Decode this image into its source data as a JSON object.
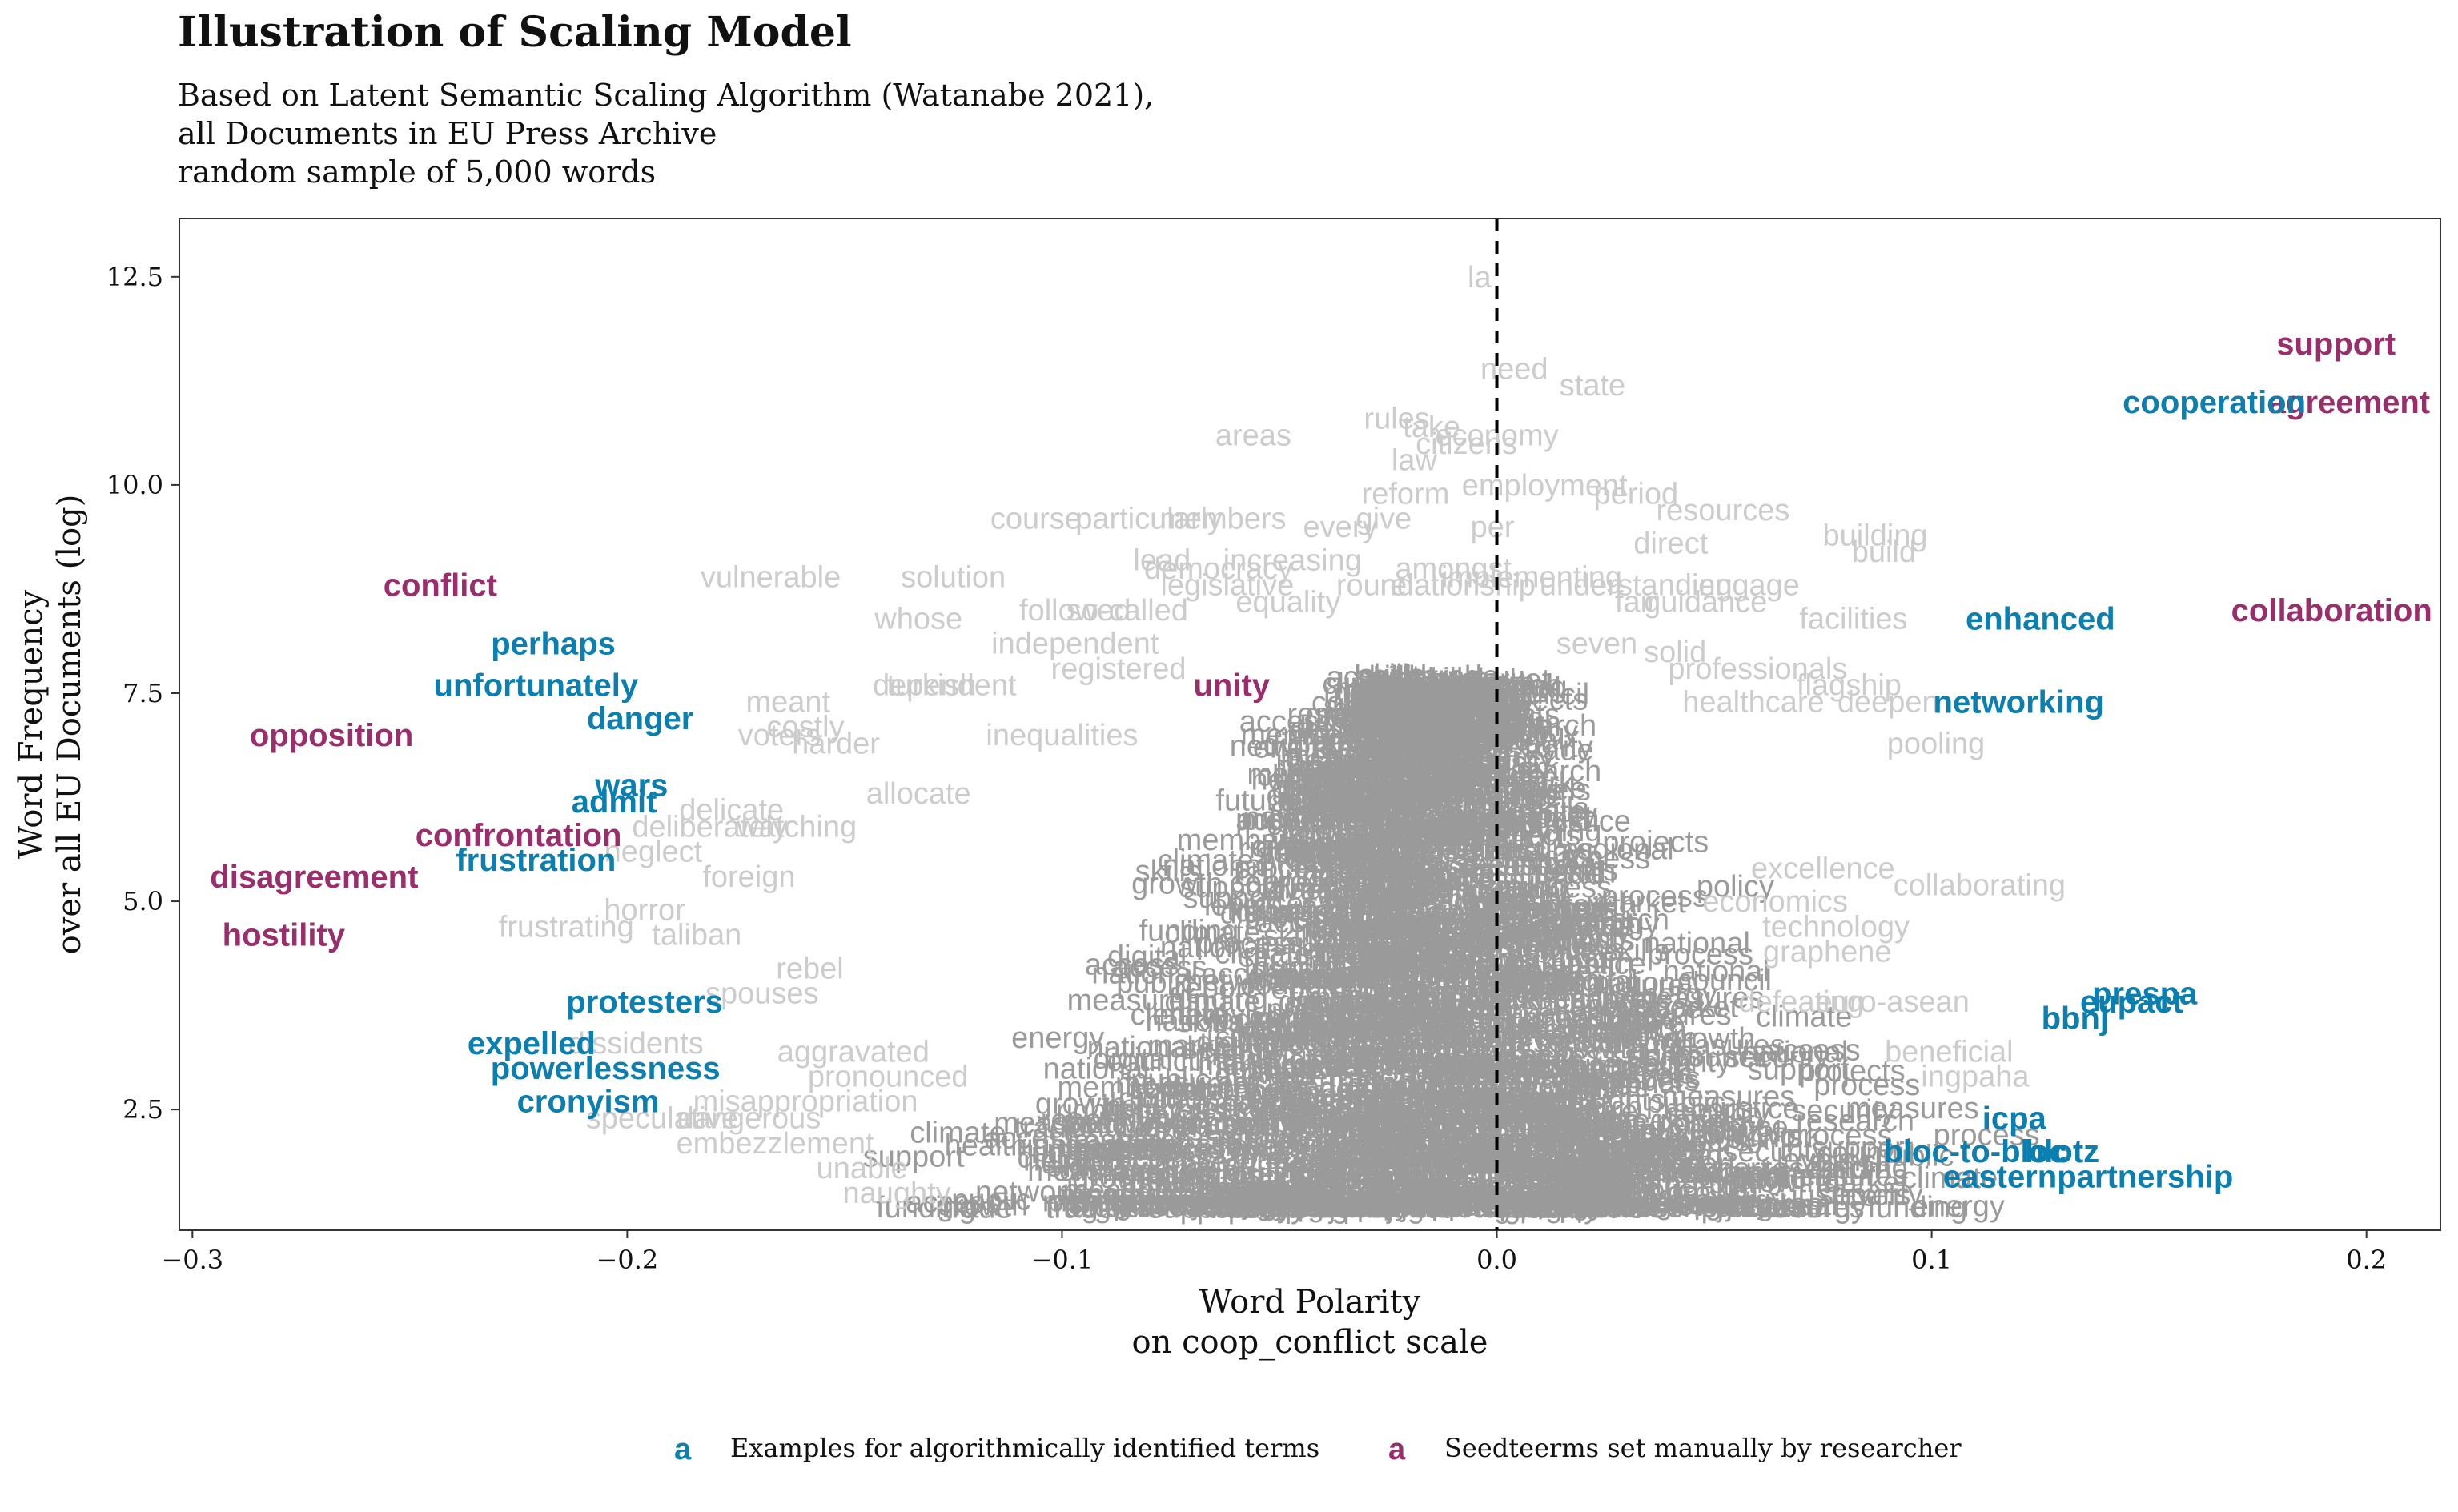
{
  "chart_data": {
    "type": "scatter",
    "title": "Illustration of Scaling Model",
    "subtitle_lines": [
      "Based on Latent Semantic Scaling Algorithm (Watanabe 2021),",
      "all Documents in EU Press Archive",
      "random sample of 5,000 words"
    ],
    "xlabel_lines": [
      "Word Polarity",
      "on coop_conflict scale"
    ],
    "ylabel_lines": [
      "Word Frequency",
      "over all EU Documents (log)"
    ],
    "xlim": [
      -0.303,
      0.217
    ],
    "ylim": [
      1.05,
      13.2
    ],
    "x_ticks": [
      -0.3,
      -0.2,
      -0.1,
      0.0,
      0.1,
      0.2
    ],
    "x_tick_labels": [
      "−0.3",
      "−0.2",
      "−0.1",
      "0.0",
      "0.1",
      "0.2"
    ],
    "y_ticks": [
      2.5,
      5.0,
      7.5,
      10.0,
      12.5
    ],
    "y_tick_labels": [
      "2.5",
      "5.0",
      "7.5",
      "10.0",
      "12.5"
    ],
    "reference_line_x": 0.0,
    "grid": false,
    "colors": {
      "algorithmic": "#0b7fb0",
      "seed": "#9a2d6b",
      "background_words": "#cccccc",
      "dense_words": "#9a9a9a",
      "reference_line": "#000000"
    },
    "legend": {
      "position": "bottom",
      "key_glyph": "a",
      "entries": [
        {
          "label": "Examples for algorithmically identified terms",
          "group": "algorithmic"
        },
        {
          "label": "Seedteerms set manually by researcher",
          "group": "seed"
        }
      ]
    },
    "series": [
      {
        "name": "Seedteerms set manually by researcher",
        "group": "seed",
        "points": [
          {
            "label": "support",
            "x": 0.193,
            "y": 11.7
          },
          {
            "label": "agreement",
            "x": 0.196,
            "y": 11.0
          },
          {
            "label": "collaboration",
            "x": 0.192,
            "y": 8.5
          },
          {
            "label": "conflict",
            "x": -0.243,
            "y": 8.8
          },
          {
            "label": "opposition",
            "x": -0.268,
            "y": 7.0
          },
          {
            "label": "confrontation",
            "x": -0.225,
            "y": 5.8
          },
          {
            "label": "disagreement",
            "x": -0.272,
            "y": 5.3
          },
          {
            "label": "hostility",
            "x": -0.279,
            "y": 4.6
          },
          {
            "label": "unity",
            "x": -0.061,
            "y": 7.6
          }
        ]
      },
      {
        "name": "Examples for algorithmically identified terms",
        "group": "algorithmic",
        "points": [
          {
            "label": "cooperation",
            "x": 0.165,
            "y": 11.0
          },
          {
            "label": "enhanced",
            "x": 0.125,
            "y": 8.4
          },
          {
            "label": "networking",
            "x": 0.12,
            "y": 7.4
          },
          {
            "label": "perhaps",
            "x": -0.217,
            "y": 8.1
          },
          {
            "label": "unfortunately",
            "x": -0.221,
            "y": 7.6
          },
          {
            "label": "danger",
            "x": -0.197,
            "y": 7.2
          },
          {
            "label": "wars",
            "x": -0.199,
            "y": 6.4
          },
          {
            "label": "admit",
            "x": -0.203,
            "y": 6.2
          },
          {
            "label": "frustration",
            "x": -0.221,
            "y": 5.5
          },
          {
            "label": "protesters",
            "x": -0.196,
            "y": 3.8
          },
          {
            "label": "expelled",
            "x": -0.222,
            "y": 3.3
          },
          {
            "label": "powerlessness",
            "x": -0.205,
            "y": 3.0
          },
          {
            "label": "cronyism",
            "x": -0.209,
            "y": 2.6
          },
          {
            "label": "prespa",
            "x": 0.149,
            "y": 3.9
          },
          {
            "label": "eupact",
            "x": 0.146,
            "y": 3.8
          },
          {
            "label": "bbnj",
            "x": 0.133,
            "y": 3.6
          },
          {
            "label": "icpa",
            "x": 0.119,
            "y": 2.4
          },
          {
            "label": "bloc-to-bloc",
            "x": 0.11,
            "y": 2.0
          },
          {
            "label": "blotz",
            "x": 0.13,
            "y": 2.0
          },
          {
            "label": "easternpartnership",
            "x": 0.136,
            "y": 1.7
          }
        ]
      },
      {
        "name": "",
        "group": "background",
        "points": [
          {
            "label": "la",
            "x": -0.004,
            "y": 12.5
          },
          {
            "label": "need",
            "x": 0.004,
            "y": 11.4
          },
          {
            "label": "state",
            "x": 0.022,
            "y": 11.2
          },
          {
            "label": "rules",
            "x": -0.023,
            "y": 10.8
          },
          {
            "label": "areas",
            "x": -0.056,
            "y": 10.6
          },
          {
            "label": "take",
            "x": -0.015,
            "y": 10.7
          },
          {
            "label": "economy",
            "x": 0.0,
            "y": 10.6
          },
          {
            "label": "citizens",
            "x": -0.007,
            "y": 10.5
          },
          {
            "label": "law",
            "x": -0.019,
            "y": 10.3
          },
          {
            "label": "employment",
            "x": 0.011,
            "y": 10.0
          },
          {
            "label": "period",
            "x": 0.032,
            "y": 9.9
          },
          {
            "label": "reform",
            "x": -0.021,
            "y": 9.9
          },
          {
            "label": "resources",
            "x": 0.052,
            "y": 9.7
          },
          {
            "label": "course",
            "x": -0.106,
            "y": 9.6
          },
          {
            "label": "particularly",
            "x": -0.08,
            "y": 9.6
          },
          {
            "label": "members",
            "x": -0.063,
            "y": 9.6
          },
          {
            "label": "every",
            "x": -0.036,
            "y": 9.5
          },
          {
            "label": "give",
            "x": -0.026,
            "y": 9.6
          },
          {
            "label": "per",
            "x": -0.001,
            "y": 9.5
          },
          {
            "label": "building",
            "x": 0.087,
            "y": 9.4
          },
          {
            "label": "build",
            "x": 0.089,
            "y": 9.2
          },
          {
            "label": "direct",
            "x": 0.04,
            "y": 9.3
          },
          {
            "label": "lead",
            "x": -0.077,
            "y": 9.1
          },
          {
            "label": "increasing",
            "x": -0.047,
            "y": 9.1
          },
          {
            "label": "democracy",
            "x": -0.064,
            "y": 9.0
          },
          {
            "label": "amongst",
            "x": -0.01,
            "y": 9.0
          },
          {
            "label": "implementing",
            "x": 0.008,
            "y": 8.9
          },
          {
            "label": "legislative",
            "x": -0.062,
            "y": 8.8
          },
          {
            "label": "vulnerable",
            "x": -0.167,
            "y": 8.9
          },
          {
            "label": "solution",
            "x": -0.125,
            "y": 8.9
          },
          {
            "label": "round",
            "x": -0.028,
            "y": 8.8
          },
          {
            "label": "relationship",
            "x": -0.009,
            "y": 8.8
          },
          {
            "label": "understanding",
            "x": 0.032,
            "y": 8.8
          },
          {
            "label": "engage",
            "x": 0.058,
            "y": 8.8
          },
          {
            "label": "equality",
            "x": -0.048,
            "y": 8.6
          },
          {
            "label": "followed",
            "x": -0.097,
            "y": 8.5
          },
          {
            "label": "so-called",
            "x": -0.085,
            "y": 8.5
          },
          {
            "label": "fair",
            "x": 0.032,
            "y": 8.6
          },
          {
            "label": "guidance",
            "x": 0.048,
            "y": 8.6
          },
          {
            "label": "whose",
            "x": -0.133,
            "y": 8.4
          },
          {
            "label": "facilities",
            "x": 0.082,
            "y": 8.4
          },
          {
            "label": "independent",
            "x": -0.097,
            "y": 8.1
          },
          {
            "label": "seven",
            "x": 0.023,
            "y": 8.1
          },
          {
            "label": "solid",
            "x": 0.041,
            "y": 8.0
          },
          {
            "label": "registered",
            "x": -0.087,
            "y": 7.8
          },
          {
            "label": "professionals",
            "x": 0.06,
            "y": 7.8
          },
          {
            "label": "flagship",
            "x": 0.081,
            "y": 7.6
          },
          {
            "label": "deepen",
            "x": 0.09,
            "y": 7.4
          },
          {
            "label": "turkish",
            "x": -0.13,
            "y": 7.6
          },
          {
            "label": "dependent",
            "x": -0.127,
            "y": 7.6
          },
          {
            "label": "meant",
            "x": -0.163,
            "y": 7.4
          },
          {
            "label": "healthcare",
            "x": 0.059,
            "y": 7.4
          },
          {
            "label": "costly",
            "x": -0.159,
            "y": 7.1
          },
          {
            "label": "voters",
            "x": -0.165,
            "y": 7.0
          },
          {
            "label": "harder",
            "x": -0.152,
            "y": 6.9
          },
          {
            "label": "pooling",
            "x": 0.101,
            "y": 6.9
          },
          {
            "label": "inequalities",
            "x": -0.1,
            "y": 7.0
          },
          {
            "label": "allocate",
            "x": -0.133,
            "y": 6.3
          },
          {
            "label": "delicate",
            "x": -0.176,
            "y": 6.1
          },
          {
            "label": "deliberately",
            "x": -0.181,
            "y": 5.9
          },
          {
            "label": "watching",
            "x": -0.161,
            "y": 5.9
          },
          {
            "label": "neglect",
            "x": -0.194,
            "y": 5.6
          },
          {
            "label": "excellence",
            "x": 0.075,
            "y": 5.4
          },
          {
            "label": "collaborating",
            "x": 0.111,
            "y": 5.2
          },
          {
            "label": "foreign",
            "x": -0.172,
            "y": 5.3
          },
          {
            "label": "horror",
            "x": -0.196,
            "y": 4.9
          },
          {
            "label": "frustrating",
            "x": -0.214,
            "y": 4.7
          },
          {
            "label": "taliban",
            "x": -0.184,
            "y": 4.6
          },
          {
            "label": "economics",
            "x": 0.064,
            "y": 5.0
          },
          {
            "label": "technology",
            "x": 0.078,
            "y": 4.7
          },
          {
            "label": "graphene",
            "x": 0.076,
            "y": 4.4
          },
          {
            "label": "rebel",
            "x": -0.158,
            "y": 4.2
          },
          {
            "label": "spouses",
            "x": -0.169,
            "y": 3.9
          },
          {
            "label": "dissidents",
            "x": -0.198,
            "y": 3.3
          },
          {
            "label": "defeating",
            "x": 0.07,
            "y": 3.8
          },
          {
            "label": "euro-asean",
            "x": 0.091,
            "y": 3.8
          },
          {
            "label": "aggravated",
            "x": -0.148,
            "y": 3.2
          },
          {
            "label": "pronounced",
            "x": -0.14,
            "y": 2.9
          },
          {
            "label": "misappropriation",
            "x": -0.159,
            "y": 2.6
          },
          {
            "label": "beneficial",
            "x": 0.104,
            "y": 3.2
          },
          {
            "label": "ingpaha",
            "x": 0.11,
            "y": 2.9
          },
          {
            "label": "speculative",
            "x": -0.192,
            "y": 2.4
          },
          {
            "label": "dangerous",
            "x": -0.172,
            "y": 2.4
          },
          {
            "label": "embezzlement",
            "x": -0.166,
            "y": 2.1
          },
          {
            "label": "unable",
            "x": -0.146,
            "y": 1.8
          },
          {
            "label": "naughty",
            "x": -0.138,
            "y": 1.5
          }
        ]
      }
    ]
  }
}
